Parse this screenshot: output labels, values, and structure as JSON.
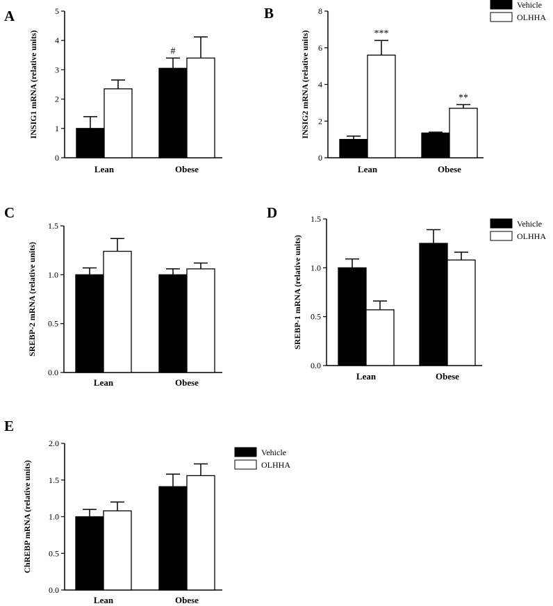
{
  "legend": {
    "vehicle": "Vehicle",
    "olhha": "OLHHA"
  },
  "colors": {
    "vehicle": "#000000",
    "olhha": "#ffffff"
  },
  "chart_data": [
    {
      "panel": "A",
      "type": "bar",
      "ylabel": "INSIG1 mRNA (relative units)",
      "categories": [
        "Lean",
        "Obese"
      ],
      "ylim": [
        0,
        5
      ],
      "yticks": [
        "0",
        "1",
        "2",
        "3",
        "4",
        "5"
      ],
      "series": [
        {
          "name": "Vehicle",
          "values": [
            1.0,
            3.05
          ],
          "errors": [
            0.4,
            0.35
          ]
        },
        {
          "name": "OLHHA",
          "values": [
            2.35,
            3.4
          ],
          "errors": [
            0.3,
            0.72
          ]
        }
      ],
      "annotations": [
        {
          "category": 1,
          "series": 0,
          "text": "#"
        }
      ]
    },
    {
      "panel": "B",
      "type": "bar",
      "ylabel": "INSIG2 mRNA (relative units)",
      "categories": [
        "Lean",
        "Obese"
      ],
      "ylim": [
        0,
        8
      ],
      "yticks": [
        "0",
        "2",
        "4",
        "6",
        "8"
      ],
      "series": [
        {
          "name": "Vehicle",
          "values": [
            1.0,
            1.35
          ],
          "errors": [
            0.18,
            0.05
          ]
        },
        {
          "name": "OLHHA",
          "values": [
            5.6,
            2.7
          ],
          "errors": [
            0.8,
            0.2
          ]
        }
      ],
      "annotations": [
        {
          "category": 0,
          "series": 1,
          "text": "***"
        },
        {
          "category": 1,
          "series": 1,
          "text": "**"
        }
      ]
    },
    {
      "panel": "C",
      "type": "bar",
      "ylabel": "SREBP-2 mRNA (relative units)",
      "categories": [
        "Lean",
        "Obese"
      ],
      "ylim": [
        0,
        1.5
      ],
      "yticks": [
        "0.0",
        "0.5",
        "1.0",
        "1.5"
      ],
      "series": [
        {
          "name": "Vehicle",
          "values": [
            1.0,
            1.0
          ],
          "errors": [
            0.07,
            0.06
          ]
        },
        {
          "name": "OLHHA",
          "values": [
            1.24,
            1.06
          ],
          "errors": [
            0.13,
            0.06
          ]
        }
      ],
      "annotations": []
    },
    {
      "panel": "D",
      "type": "bar",
      "ylabel": "SREBP-1 mRNA (relative units)",
      "categories": [
        "Lean",
        "Obese"
      ],
      "ylim": [
        0,
        1.5
      ],
      "yticks": [
        "0.0",
        "0.5",
        "1.0",
        "1.5"
      ],
      "series": [
        {
          "name": "Vehicle",
          "values": [
            1.0,
            1.25
          ],
          "errors": [
            0.09,
            0.14
          ]
        },
        {
          "name": "OLHHA",
          "values": [
            0.57,
            1.08
          ],
          "errors": [
            0.09,
            0.08
          ]
        }
      ],
      "annotations": []
    },
    {
      "panel": "E",
      "type": "bar",
      "ylabel": "ChREBP mRNA (relative units)",
      "categories": [
        "Lean",
        "Obese"
      ],
      "ylim": [
        0,
        2.0
      ],
      "yticks": [
        "0.0",
        "0.5",
        "1.0",
        "1.5",
        "2.0"
      ],
      "series": [
        {
          "name": "Vehicle",
          "values": [
            1.0,
            1.41
          ],
          "errors": [
            0.1,
            0.17
          ]
        },
        {
          "name": "OLHHA",
          "values": [
            1.08,
            1.56
          ],
          "errors": [
            0.12,
            0.16
          ]
        }
      ],
      "annotations": []
    }
  ]
}
